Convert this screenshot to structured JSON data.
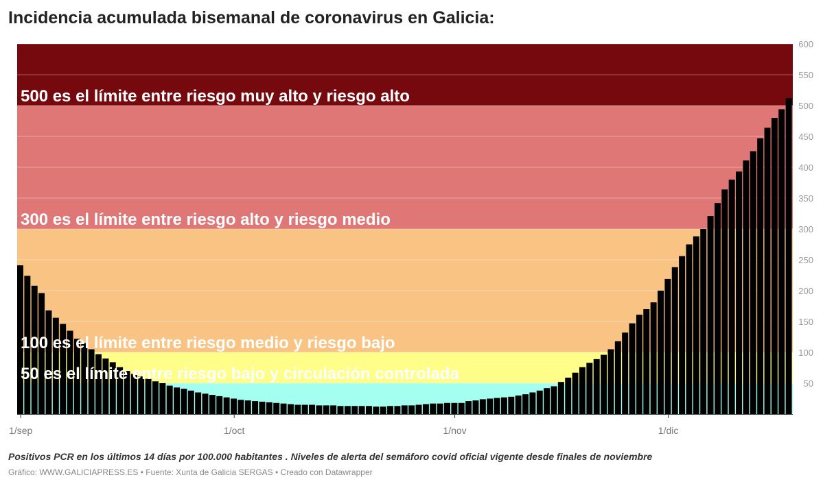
{
  "title": "Incidencia acumulada bisemanal de coronavirus en Galicia:",
  "notes": "Positivos PCR en los últimos 14 días por 100.000 habitantes . Niveles de alerta del semáforo covid oficial vigente desde finales de noviembre",
  "footer": "Gráfico: WWW.GALICIAPRESS.ES • Fuente: Xunta de Galicia SERGAS • Creado con Datawrapper",
  "chart_data": {
    "type": "bar",
    "ylim": [
      0,
      600
    ],
    "yticks": [
      50,
      100,
      150,
      200,
      250,
      300,
      350,
      400,
      450,
      500,
      550,
      600
    ],
    "ytick_labels": [
      "50",
      "100",
      "150",
      "200",
      "250",
      "300",
      "350",
      "400",
      "450",
      "500",
      "550",
      "600"
    ],
    "x_start": "1/sep",
    "xticks": [
      {
        "label": "1/sep",
        "index": 0
      },
      {
        "label": "1/oct",
        "index": 30
      },
      {
        "label": "1/nov",
        "index": 61
      },
      {
        "label": "1/dic",
        "index": 91
      }
    ],
    "bands": [
      {
        "from": 500,
        "to": 600,
        "color": "#75090d",
        "label": "500 es el límite entre riesgo muy alto y riesgo alto"
      },
      {
        "from": 300,
        "to": 500,
        "color": "#de7776",
        "label": "300 es el límite entre riesgo alto y riesgo medio"
      },
      {
        "from": 100,
        "to": 300,
        "color": "#f9c384",
        "label": "100 es el límite entre riesgo medio y riesgo bajo"
      },
      {
        "from": 50,
        "to": 100,
        "color": "#fefe88",
        "label": "50 es el límite entre riesgo bajo y circulación controlada"
      },
      {
        "from": 0,
        "to": 50,
        "color": "#a5fff0",
        "label": ""
      }
    ],
    "bar_color": "#000000",
    "values": [
      241,
      224,
      208,
      196,
      168,
      156,
      146,
      135,
      122,
      115,
      105,
      97,
      90,
      84,
      76,
      70,
      65,
      61,
      57,
      53,
      50,
      46,
      43,
      41,
      38,
      35,
      33,
      31,
      29,
      27,
      25,
      23,
      22,
      21,
      20,
      19,
      18,
      17,
      16,
      15,
      15,
      15,
      14,
      14,
      14,
      13,
      13,
      13,
      13,
      13,
      12,
      12,
      13,
      13,
      14,
      14,
      15,
      16,
      17,
      17,
      18,
      18,
      18,
      21,
      22,
      24,
      25,
      26,
      27,
      28,
      30,
      32,
      35,
      38,
      42,
      45,
      52,
      59,
      67,
      76,
      83,
      89,
      96,
      105,
      118,
      132,
      147,
      161,
      170,
      181,
      200,
      219,
      238,
      256,
      275,
      288,
      300,
      321,
      342,
      364,
      380,
      393,
      411,
      426,
      447,
      464,
      480,
      494,
      512
    ]
  }
}
